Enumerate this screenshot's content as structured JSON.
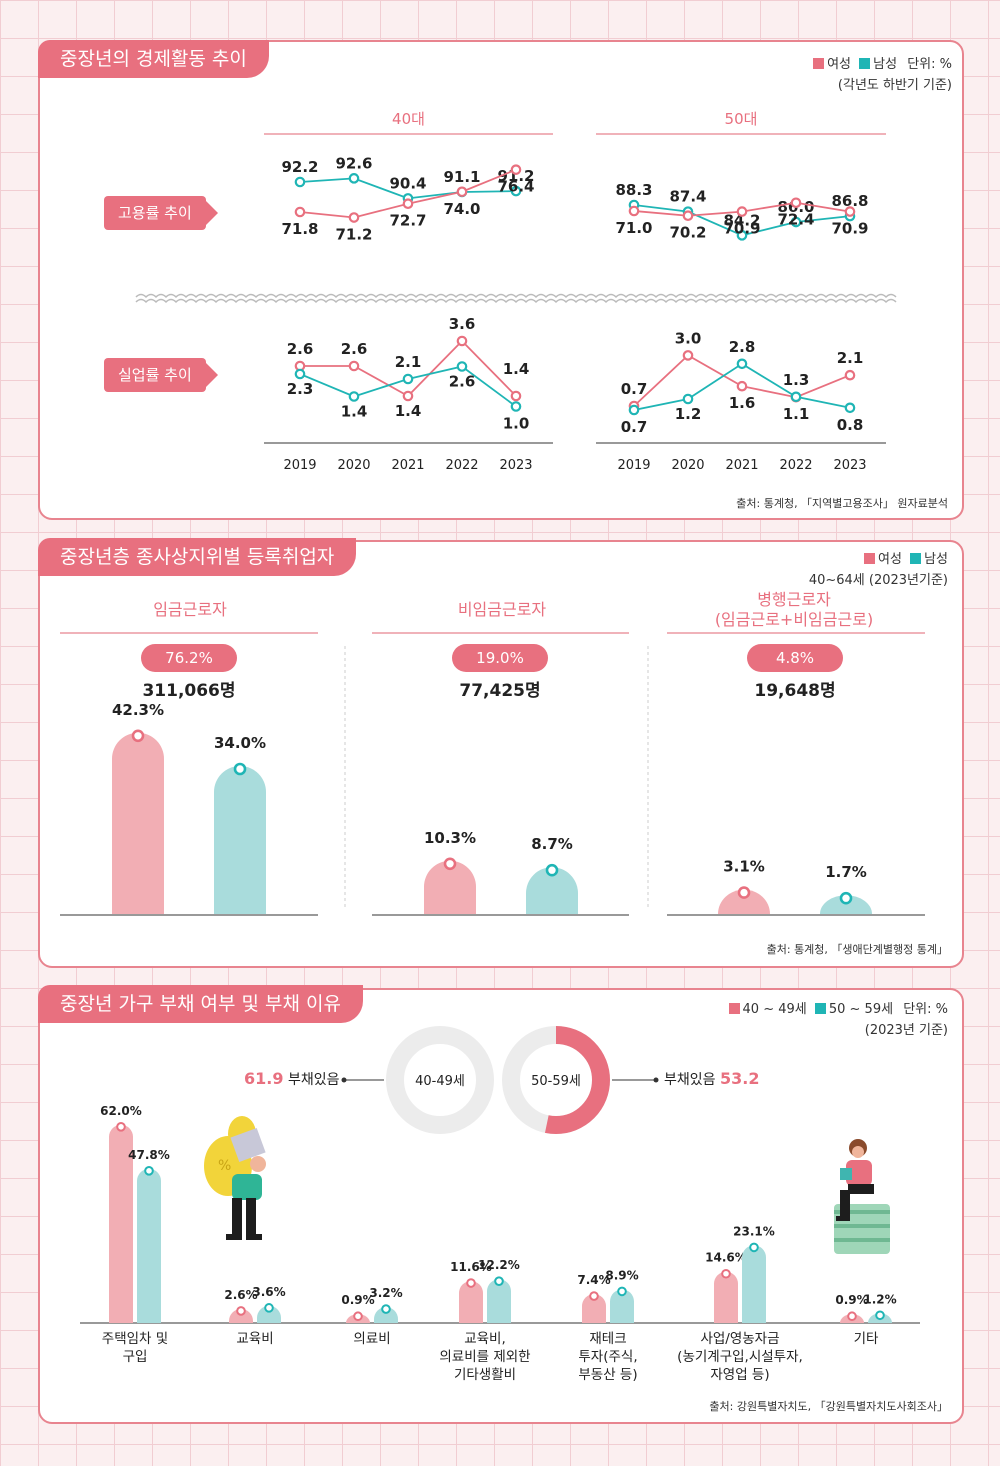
{
  "colors": {
    "female": "#e8707f",
    "male": "#1fb5b5",
    "female_bar": "#f2aeb4",
    "male_bar": "#a9dcdc",
    "accent": "#e8707f"
  },
  "s1": {
    "title": "중장년의 경제활동 추이",
    "legend": {
      "female": "여성",
      "male": "남성",
      "unit": "단위: %",
      "note": "(각년도 하반기 기준)"
    },
    "label_employment": "고용률 추이",
    "label_unemployment": "실업률 추이",
    "source": "출처: 통계청, 「지역별고용조사」 원자료분석"
  },
  "s2": {
    "title": "중장년층 종사상지위별 등록취업자",
    "legend": {
      "female": "여성",
      "male": "남성",
      "note": "40~64세 (2023년기준)"
    },
    "cols": [
      {
        "title": "임금근로자",
        "share": "76.2%",
        "count": "311,066명"
      },
      {
        "title": "비임금근로자",
        "share": "19.0%",
        "count": "77,425명"
      },
      {
        "title": "병행근로자\n(임금근로+비임금근로)",
        "share": "4.8%",
        "count": "19,648명"
      }
    ],
    "source": "출처: 통계청, 「생애단계별행정 통계」"
  },
  "s3": {
    "title": "중장년 가구 부채 여부 및 부채 이유",
    "legend": {
      "a": "40 ~ 49세",
      "b": "50 ~ 59세",
      "unit": "단위: %",
      "note": "(2023년 기준)"
    },
    "donuts": [
      {
        "label": "40-49세",
        "value": "61.9",
        "text": "부채있음"
      },
      {
        "label": "50-59세",
        "value": "53.2",
        "text": "부채있음"
      }
    ],
    "source": "출처: 강원특별자치도, 「강원특별자치도사회조사」"
  },
  "chart_data": [
    {
      "type": "line",
      "title": "고용률 추이",
      "subtitle": "40대",
      "x": [
        "2019",
        "2020",
        "2021",
        "2022",
        "2023"
      ],
      "series": [
        {
          "name": "남성",
          "values": [
            92.2,
            92.6,
            90.4,
            91.1,
            91.2
          ]
        },
        {
          "name": "여성",
          "values": [
            71.8,
            71.2,
            72.7,
            74.0,
            76.4
          ]
        }
      ]
    },
    {
      "type": "line",
      "title": "고용률 추이",
      "subtitle": "50대",
      "x": [
        "2019",
        "2020",
        "2021",
        "2022",
        "2023"
      ],
      "series": [
        {
          "name": "남성",
          "values": [
            88.3,
            87.4,
            84.2,
            86.0,
            86.8
          ]
        },
        {
          "name": "여성",
          "values": [
            71.0,
            70.2,
            70.9,
            72.4,
            70.9
          ]
        }
      ]
    },
    {
      "type": "line",
      "title": "실업률 추이",
      "subtitle": "40대",
      "x": [
        "2019",
        "2020",
        "2021",
        "2022",
        "2023"
      ],
      "series": [
        {
          "name": "여성",
          "values": [
            2.6,
            2.6,
            1.4,
            3.6,
            1.4
          ]
        },
        {
          "name": "남성",
          "values": [
            2.3,
            1.4,
            2.1,
            2.6,
            1.0
          ]
        }
      ]
    },
    {
      "type": "line",
      "title": "실업률 추이",
      "subtitle": "50대",
      "x": [
        "2019",
        "2020",
        "2021",
        "2022",
        "2023"
      ],
      "series": [
        {
          "name": "여성",
          "values": [
            0.7,
            3.0,
            1.6,
            1.1,
            2.1
          ]
        },
        {
          "name": "남성",
          "values": [
            0.7,
            1.2,
            2.8,
            1.3,
            0.8
          ]
        }
      ]
    },
    {
      "type": "bar",
      "title": "중장년층 종사상지위별 등록취업자",
      "categories": [
        "임금근로자",
        "비임금근로자",
        "병행근로자"
      ],
      "series": [
        {
          "name": "여성",
          "values": [
            42.3,
            10.3,
            3.1
          ]
        },
        {
          "name": "남성",
          "values": [
            34.0,
            8.7,
            1.7
          ]
        }
      ],
      "value_labels": [
        "42.3%",
        "34.0%",
        "10.3%",
        "8.7%",
        "3.1%",
        "1.7%"
      ]
    },
    {
      "type": "bar",
      "title": "중장년 가구 부채 여부 및 부채 이유",
      "categories": [
        "주택임차 및\n구입",
        "교육비",
        "의료비",
        "교육비,\n의료비를 제외한\n기타생활비",
        "재테크\n투자(주식,\n부동산 등)",
        "사업/영농자금\n(농기계구입,시설투자,\n자영업 등)",
        "기타"
      ],
      "series": [
        {
          "name": "40 ~ 49세",
          "values": [
            62.0,
            2.6,
            0.9,
            11.6,
            7.4,
            14.6,
            0.9
          ]
        },
        {
          "name": "50 ~ 59세",
          "values": [
            47.8,
            3.6,
            3.2,
            12.2,
            8.9,
            23.1,
            1.2
          ]
        }
      ],
      "value_labels": [
        [
          "62.0%",
          "2.6%",
          "0.9%",
          "11.6%",
          "7.4%",
          "14.6%",
          "0.9%"
        ],
        [
          "47.8%",
          "3.6%",
          "3.2%",
          "12.2%",
          "8.9%",
          "23.1%",
          "1.2%"
        ]
      ]
    },
    {
      "type": "pie",
      "title": "부채있음",
      "categories": [
        "40-49세",
        "50-59세"
      ],
      "values": [
        61.9,
        53.2
      ]
    }
  ]
}
